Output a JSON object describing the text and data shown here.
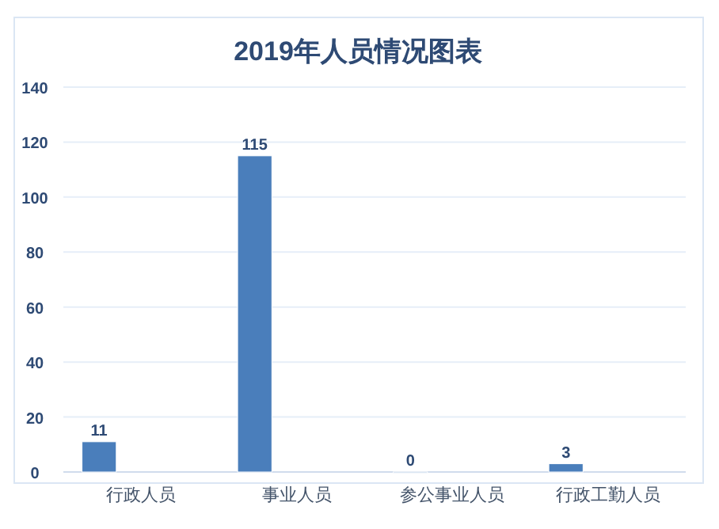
{
  "chart_data": {
    "type": "bar",
    "title": "2019年人员情况图表",
    "categories": [
      "行政人员",
      "事业人员",
      "参公事业人员",
      "行政工勤人员"
    ],
    "values": [
      11,
      115,
      0,
      3
    ],
    "color": "#4a7ebb",
    "ylim": [
      0,
      140
    ],
    "yticks": [
      0,
      20,
      40,
      60,
      80,
      100,
      120,
      140
    ],
    "grid": "y",
    "data_labels": true
  }
}
